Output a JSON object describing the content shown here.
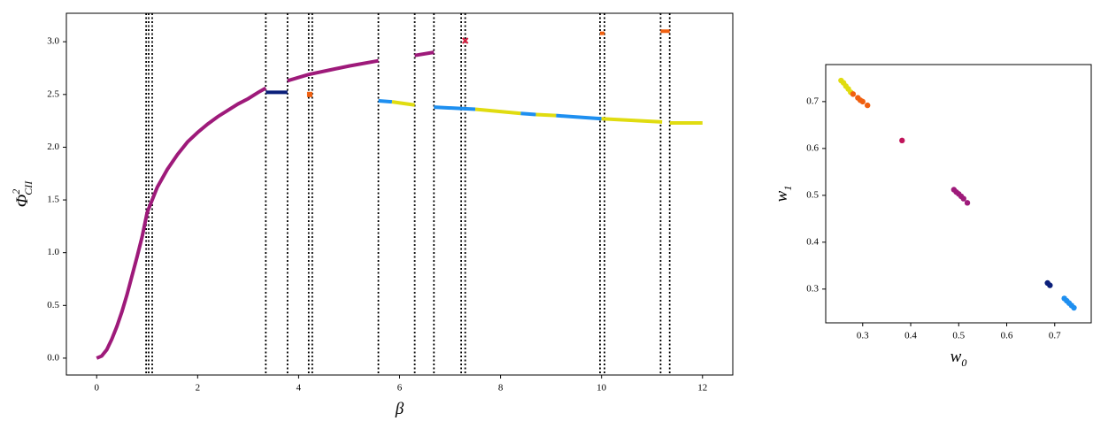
{
  "chart_data": [
    {
      "type": "line",
      "xlabel": {
        "base": "β"
      },
      "ylabel": {
        "base": "Φ",
        "sup": "2",
        "sub": "CII"
      },
      "xlim": [
        -0.6,
        12.6
      ],
      "ylim": [
        -0.16,
        3.27
      ],
      "xticks": [
        0,
        2,
        4,
        6,
        8,
        10,
        12
      ],
      "yticks": [
        {
          "value": 0,
          "label": "0.0"
        },
        0.5,
        {
          "value": 1,
          "label": "1.0"
        },
        1.5,
        {
          "value": 2,
          "label": "2.0"
        },
        2.5,
        {
          "value": 3,
          "label": "3.0"
        }
      ],
      "vlines": [
        0.98,
        1.03,
        1.1,
        3.35,
        3.78,
        4.2,
        4.27,
        5.58,
        6.3,
        6.68,
        7.22,
        7.3,
        9.97,
        10.06,
        11.17,
        11.35
      ],
      "series": [
        {
          "color": "#9e1a7a",
          "x": [
            0,
            0.1,
            0.2,
            0.3,
            0.4,
            0.5,
            0.6,
            0.7,
            0.8,
            0.9,
            1.0,
            1.2,
            1.4,
            1.6,
            1.8,
            2.0,
            2.2,
            2.4,
            2.6,
            2.8,
            3.0,
            3.2,
            3.35
          ],
          "values": [
            0,
            0.02,
            0.08,
            0.18,
            0.3,
            0.44,
            0.6,
            0.78,
            0.96,
            1.15,
            1.38,
            1.62,
            1.79,
            1.93,
            2.05,
            2.14,
            2.22,
            2.29,
            2.35,
            2.41,
            2.46,
            2.52,
            2.56
          ]
        },
        {
          "color": "#0b1f7a",
          "x": [
            3.35,
            3.78
          ],
          "values": [
            2.52,
            2.52
          ]
        },
        {
          "color": "#f06010",
          "x": [
            4.22
          ],
          "values": [
            2.5
          ]
        },
        {
          "color": "#9e1a7a",
          "x": [
            3.78,
            4.2,
            4.6,
            5.0,
            5.58
          ],
          "values": [
            2.63,
            2.69,
            2.73,
            2.77,
            2.82
          ]
        },
        {
          "color": "#9e1a7a",
          "x": [
            6.3,
            6.68
          ],
          "values": [
            2.87,
            2.9
          ]
        },
        {
          "color": "#d81e40",
          "marker": "x",
          "x": [
            7.3
          ],
          "values": [
            3.01
          ]
        },
        {
          "color": "#f06010",
          "x": [
            9.97,
            10.06
          ],
          "values": [
            3.08,
            3.08
          ]
        },
        {
          "color": "#f06010",
          "x": [
            11.17,
            11.35
          ],
          "values": [
            3.1,
            3.1
          ]
        },
        {
          "color": "#1e8ff0",
          "x": [
            5.58,
            5.85
          ],
          "values": [
            2.44,
            2.43
          ]
        },
        {
          "color": "#e0dc10",
          "x": [
            5.85,
            6.3
          ],
          "values": [
            2.43,
            2.4
          ]
        },
        {
          "color": "#1e8ff0",
          "x": [
            6.68,
            7.5
          ],
          "values": [
            2.38,
            2.36
          ]
        },
        {
          "color": "#e0dc10",
          "x": [
            7.5,
            8.4
          ],
          "values": [
            2.36,
            2.32
          ]
        },
        {
          "color": "#1e8ff0",
          "x": [
            8.4,
            8.7
          ],
          "values": [
            2.32,
            2.31
          ]
        },
        {
          "color": "#e0dc10",
          "x": [
            8.7,
            9.1
          ],
          "values": [
            2.31,
            2.3
          ]
        },
        {
          "color": "#1e8ff0",
          "x": [
            9.1,
            10.0
          ],
          "values": [
            2.3,
            2.27
          ]
        },
        {
          "color": "#e0dc10",
          "x": [
            10.0,
            11.2
          ],
          "values": [
            2.27,
            2.24
          ]
        },
        {
          "color": "#e0dc10",
          "x": [
            11.35,
            12.0
          ],
          "values": [
            2.23,
            2.23
          ]
        }
      ]
    },
    {
      "type": "scatter",
      "xlabel": {
        "base": "w",
        "sub": "0"
      },
      "ylabel": {
        "base": "w",
        "sub": "1"
      },
      "xlim": [
        0.223,
        0.776
      ],
      "ylim": [
        0.228,
        0.779
      ],
      "xticks": [
        0.3,
        0.4,
        0.5,
        0.6,
        0.7
      ],
      "yticks": [
        0.3,
        0.4,
        0.5,
        0.6,
        0.7
      ],
      "series": [
        {
          "color": "#e0dc10",
          "x": [
            0.255,
            0.26,
            0.265,
            0.27,
            0.275
          ],
          "values": [
            0.745,
            0.74,
            0.733,
            0.727,
            0.72
          ]
        },
        {
          "color": "#f06010",
          "x": [
            0.28,
            0.29,
            0.295,
            0.3,
            0.31
          ],
          "values": [
            0.716,
            0.708,
            0.703,
            0.7,
            0.692
          ]
        },
        {
          "color": "#c0145a",
          "x": [
            0.382
          ],
          "values": [
            0.617
          ]
        },
        {
          "color": "#9e1a7a",
          "x": [
            0.49,
            0.495,
            0.5,
            0.505,
            0.51,
            0.518
          ],
          "values": [
            0.512,
            0.507,
            0.503,
            0.498,
            0.493,
            0.484
          ]
        },
        {
          "color": "#0b1f7a",
          "x": [
            0.685,
            0.69
          ],
          "values": [
            0.313,
            0.308
          ]
        },
        {
          "color": "#1e8ff0",
          "x": [
            0.72,
            0.725,
            0.73,
            0.735,
            0.74
          ],
          "values": [
            0.28,
            0.275,
            0.27,
            0.265,
            0.26
          ]
        }
      ]
    }
  ]
}
